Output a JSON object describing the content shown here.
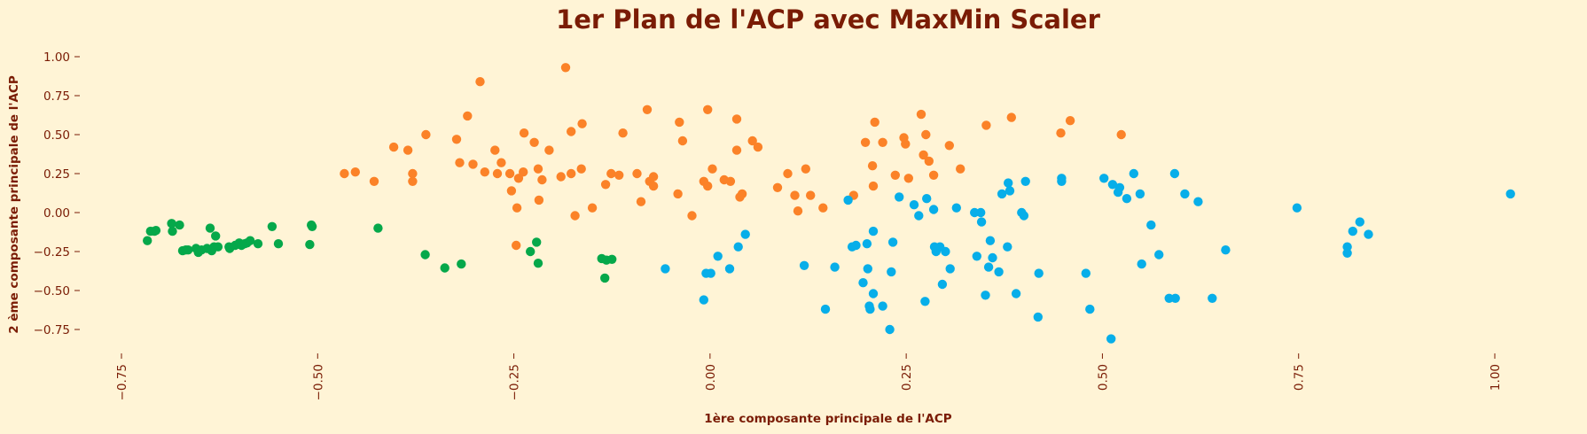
{
  "colors": {
    "background": "#fff4d6",
    "text": "#7a1c05",
    "cluster_green": "#05a84a",
    "cluster_orange": "#fb8228",
    "cluster_blue": "#07aee9"
  },
  "chart_data": {
    "type": "scatter",
    "title": "1er Plan de l'ACP avec MaxMin Scaler",
    "xlabel": "1ère composante principale de l'ACP",
    "ylabel": "2 ème composante principale de l'ACP",
    "xlim": [
      -0.8,
      1.04
    ],
    "ylim": [
      -0.86,
      1.1
    ],
    "xticks": [
      -0.75,
      -0.5,
      -0.25,
      0.0,
      0.25,
      0.5,
      0.75,
      1.0
    ],
    "xtick_labels": [
      "−0.75",
      "−0.50",
      "−0.25",
      "0.00",
      "0.25",
      "0.50",
      "0.75",
      "1.00"
    ],
    "yticks": [
      1.0,
      0.75,
      0.5,
      0.25,
      0.0,
      -0.25,
      -0.5,
      -0.75
    ],
    "ytick_labels": [
      "1.00",
      "0.75",
      "0.50",
      "0.25",
      "0.00",
      "−0.25",
      "−0.50",
      "−0.75"
    ],
    "xtick_rotation": 90,
    "grid": false,
    "legend": "none",
    "series": [
      {
        "color": "#05a84a",
        "points": [
          [
            -0.717,
            -0.18
          ],
          [
            -0.713,
            -0.12
          ],
          [
            -0.708,
            -0.12
          ],
          [
            -0.706,
            -0.115
          ],
          [
            -0.686,
            -0.07
          ],
          [
            -0.685,
            -0.12
          ],
          [
            -0.676,
            -0.08
          ],
          [
            -0.672,
            -0.245
          ],
          [
            -0.668,
            -0.24
          ],
          [
            -0.665,
            -0.24
          ],
          [
            -0.655,
            -0.23
          ],
          [
            -0.652,
            -0.255
          ],
          [
            -0.648,
            -0.24
          ],
          [
            -0.641,
            -0.23
          ],
          [
            -0.637,
            -0.1
          ],
          [
            -0.635,
            -0.245
          ],
          [
            -0.632,
            -0.22
          ],
          [
            -0.63,
            -0.15
          ],
          [
            -0.627,
            -0.22
          ],
          [
            -0.613,
            -0.22
          ],
          [
            -0.612,
            -0.23
          ],
          [
            -0.605,
            -0.21
          ],
          [
            -0.6,
            -0.195
          ],
          [
            -0.597,
            -0.21
          ],
          [
            -0.593,
            -0.2
          ],
          [
            -0.59,
            -0.195
          ],
          [
            -0.586,
            -0.18
          ],
          [
            -0.576,
            -0.2
          ],
          [
            -0.558,
            -0.09
          ],
          [
            -0.55,
            -0.2
          ],
          [
            -0.508,
            -0.08
          ],
          [
            -0.507,
            -0.09
          ],
          [
            -0.51,
            -0.205
          ],
          [
            -0.423,
            -0.1
          ],
          [
            -0.363,
            -0.27
          ],
          [
            -0.338,
            -0.355
          ],
          [
            -0.317,
            -0.33
          ],
          [
            -0.229,
            -0.25
          ],
          [
            -0.221,
            -0.19
          ],
          [
            -0.219,
            -0.325
          ],
          [
            -0.138,
            -0.295
          ],
          [
            -0.134,
            -0.42
          ],
          [
            -0.132,
            -0.305
          ],
          [
            -0.125,
            -0.3
          ]
        ]
      },
      {
        "color": "#fb8228",
        "points": [
          [
            -0.184,
            0.93
          ],
          [
            -0.293,
            0.84
          ],
          [
            -0.309,
            0.62
          ],
          [
            -0.08,
            0.66
          ],
          [
            -0.003,
            0.66
          ],
          [
            0.034,
            0.6
          ],
          [
            -0.039,
            0.58
          ],
          [
            0.21,
            0.58
          ],
          [
            0.269,
            0.63
          ],
          [
            0.384,
            0.61
          ],
          [
            0.447,
            0.51
          ],
          [
            0.459,
            0.59
          ],
          [
            -0.466,
            0.25
          ],
          [
            -0.452,
            0.26
          ],
          [
            -0.428,
            0.2
          ],
          [
            -0.403,
            0.42
          ],
          [
            -0.385,
            0.4
          ],
          [
            -0.379,
            0.25
          ],
          [
            -0.379,
            0.2
          ],
          [
            -0.362,
            0.5
          ],
          [
            -0.323,
            0.47
          ],
          [
            -0.319,
            0.32
          ],
          [
            -0.302,
            0.31
          ],
          [
            -0.287,
            0.26
          ],
          [
            -0.274,
            0.4
          ],
          [
            -0.271,
            0.25
          ],
          [
            -0.266,
            0.32
          ],
          [
            -0.255,
            0.25
          ],
          [
            -0.253,
            0.14
          ],
          [
            -0.246,
            0.03
          ],
          [
            -0.244,
            0.22
          ],
          [
            -0.238,
            0.26
          ],
          [
            -0.247,
            -0.21
          ],
          [
            -0.237,
            0.51
          ],
          [
            -0.224,
            0.45
          ],
          [
            -0.219,
            0.28
          ],
          [
            -0.218,
            0.08
          ],
          [
            -0.214,
            0.21
          ],
          [
            -0.205,
            0.4
          ],
          [
            -0.19,
            0.23
          ],
          [
            -0.177,
            0.52
          ],
          [
            -0.177,
            0.25
          ],
          [
            -0.172,
            -0.02
          ],
          [
            -0.163,
            0.57
          ],
          [
            -0.164,
            0.28
          ],
          [
            -0.15,
            0.03
          ],
          [
            -0.133,
            0.18
          ],
          [
            -0.126,
            0.25
          ],
          [
            -0.116,
            0.24
          ],
          [
            -0.111,
            0.51
          ],
          [
            -0.093,
            0.25
          ],
          [
            -0.088,
            0.07
          ],
          [
            -0.077,
            0.2
          ],
          [
            -0.072,
            0.23
          ],
          [
            -0.072,
            0.17
          ],
          [
            -0.041,
            0.12
          ],
          [
            -0.035,
            0.46
          ],
          [
            -0.023,
            -0.02
          ],
          [
            -0.008,
            0.2
          ],
          [
            -0.003,
            0.17
          ],
          [
            0.003,
            0.28
          ],
          [
            0.018,
            0.21
          ],
          [
            0.026,
            0.2
          ],
          [
            0.034,
            0.4
          ],
          [
            0.038,
            0.1
          ],
          [
            0.041,
            0.12
          ],
          [
            0.054,
            0.46
          ],
          [
            0.061,
            0.42
          ],
          [
            0.086,
            0.16
          ],
          [
            0.099,
            0.25
          ],
          [
            0.108,
            0.11
          ],
          [
            0.112,
            0.01
          ],
          [
            0.122,
            0.28
          ],
          [
            0.128,
            0.11
          ],
          [
            0.144,
            0.03
          ],
          [
            0.183,
            0.11
          ],
          [
            0.198,
            0.45
          ],
          [
            0.207,
            0.3
          ],
          [
            0.208,
            0.17
          ],
          [
            0.22,
            0.45
          ],
          [
            0.236,
            0.24
          ],
          [
            0.247,
            0.48
          ],
          [
            0.249,
            0.44
          ],
          [
            0.253,
            0.22
          ],
          [
            0.272,
            0.37
          ],
          [
            0.279,
            0.33
          ],
          [
            0.275,
            0.5
          ],
          [
            0.285,
            0.24
          ],
          [
            0.305,
            0.43
          ],
          [
            0.319,
            0.28
          ],
          [
            0.352,
            0.56
          ],
          [
            0.524,
            0.5
          ]
        ]
      },
      {
        "color": "#07aee9",
        "points": [
          [
            1.02,
            0.12
          ],
          [
            0.748,
            0.03
          ],
          [
            0.839,
            -0.14
          ],
          [
            0.828,
            -0.06
          ],
          [
            0.819,
            -0.12
          ],
          [
            0.812,
            -0.22
          ],
          [
            0.812,
            -0.26
          ],
          [
            0.657,
            -0.24
          ],
          [
            0.64,
            -0.55
          ],
          [
            0.622,
            0.07
          ],
          [
            0.605,
            0.12
          ],
          [
            0.593,
            -0.55
          ],
          [
            0.592,
            0.25
          ],
          [
            0.585,
            -0.55
          ],
          [
            0.572,
            -0.27
          ],
          [
            0.562,
            -0.08
          ],
          [
            0.55,
            -0.33
          ],
          [
            0.548,
            0.12
          ],
          [
            0.54,
            0.25
          ],
          [
            0.531,
            0.09
          ],
          [
            0.522,
            0.16
          ],
          [
            0.52,
            0.13
          ],
          [
            0.513,
            0.18
          ],
          [
            0.511,
            -0.81
          ],
          [
            0.502,
            0.22
          ],
          [
            0.484,
            -0.62
          ],
          [
            0.479,
            -0.39
          ],
          [
            0.448,
            0.22
          ],
          [
            0.448,
            0.2
          ],
          [
            0.419,
            -0.39
          ],
          [
            0.418,
            -0.67
          ],
          [
            0.402,
            0.2
          ],
          [
            0.4,
            -0.02
          ],
          [
            0.397,
            0.0
          ],
          [
            0.39,
            -0.52
          ],
          [
            0.382,
            0.14
          ],
          [
            0.38,
            0.19
          ],
          [
            0.379,
            -0.22
          ],
          [
            0.372,
            0.12
          ],
          [
            0.368,
            -0.38
          ],
          [
            0.36,
            -0.29
          ],
          [
            0.357,
            -0.18
          ],
          [
            0.355,
            -0.35
          ],
          [
            0.351,
            -0.53
          ],
          [
            0.346,
            -0.06
          ],
          [
            0.345,
            0.0
          ],
          [
            0.34,
            -0.28
          ],
          [
            0.337,
            0.0
          ],
          [
            0.314,
            0.03
          ],
          [
            0.306,
            -0.36
          ],
          [
            0.3,
            -0.25
          ],
          [
            0.296,
            -0.46
          ],
          [
            0.293,
            -0.22
          ],
          [
            0.288,
            -0.25
          ],
          [
            0.286,
            -0.22
          ],
          [
            0.285,
            0.02
          ],
          [
            0.276,
            0.09
          ],
          [
            0.274,
            -0.57
          ],
          [
            0.266,
            -0.02
          ],
          [
            0.26,
            0.05
          ],
          [
            0.241,
            0.1
          ],
          [
            0.233,
            -0.19
          ],
          [
            0.231,
            -0.38
          ],
          [
            0.229,
            -0.75
          ],
          [
            0.22,
            -0.6
          ],
          [
            0.208,
            -0.12
          ],
          [
            0.208,
            -0.52
          ],
          [
            0.204,
            -0.62
          ],
          [
            0.203,
            -0.6
          ],
          [
            0.201,
            -0.36
          ],
          [
            0.2,
            -0.2
          ],
          [
            0.195,
            -0.45
          ],
          [
            0.186,
            -0.21
          ],
          [
            0.181,
            -0.22
          ],
          [
            0.176,
            0.08
          ],
          [
            0.147,
            -0.62
          ],
          [
            0.12,
            -0.34
          ],
          [
            0.159,
            -0.35
          ],
          [
            0.045,
            -0.14
          ],
          [
            0.036,
            -0.22
          ],
          [
            0.025,
            -0.36
          ],
          [
            0.01,
            -0.28
          ],
          [
            0.001,
            -0.39
          ],
          [
            -0.005,
            -0.39
          ],
          [
            -0.008,
            -0.56
          ],
          [
            -0.057,
            -0.36
          ]
        ]
      }
    ]
  }
}
